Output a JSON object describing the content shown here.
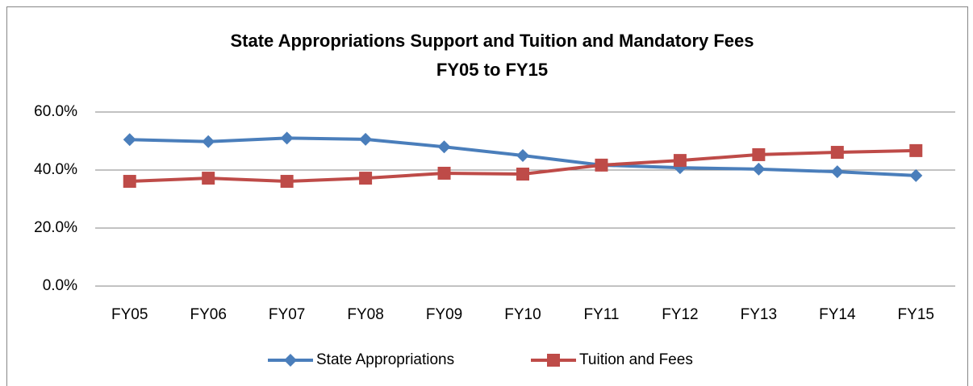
{
  "chart_data": {
    "type": "line",
    "title": "State Appropriations Support and Tuition and Mandatory Fees",
    "subtitle": "FY05 to FY15",
    "categories": [
      "FY05",
      "FY06",
      "FY07",
      "FY08",
      "FY09",
      "FY10",
      "FY11",
      "FY12",
      "FY13",
      "FY14",
      "FY15"
    ],
    "series": [
      {
        "name": "State Appropriations",
        "color": "#4a7ebb",
        "marker": "diamond",
        "values": [
          50.5,
          49.8,
          51.0,
          50.6,
          48.0,
          45.0,
          41.7,
          40.8,
          40.3,
          39.4,
          38.1
        ]
      },
      {
        "name": "Tuition and Fees",
        "color": "#be4b48",
        "marker": "square",
        "values": [
          36.1,
          37.2,
          36.1,
          37.2,
          38.9,
          38.6,
          41.7,
          43.3,
          45.3,
          46.1,
          46.7
        ]
      }
    ],
    "ylim": [
      0,
      60
    ],
    "yticks": [
      {
        "value": 0,
        "label": "0.0%"
      },
      {
        "value": 20,
        "label": "20.0%"
      },
      {
        "value": 40,
        "label": "40.0%"
      },
      {
        "value": 60,
        "label": "60.0%"
      }
    ],
    "grid": true,
    "legend": "bottom"
  }
}
